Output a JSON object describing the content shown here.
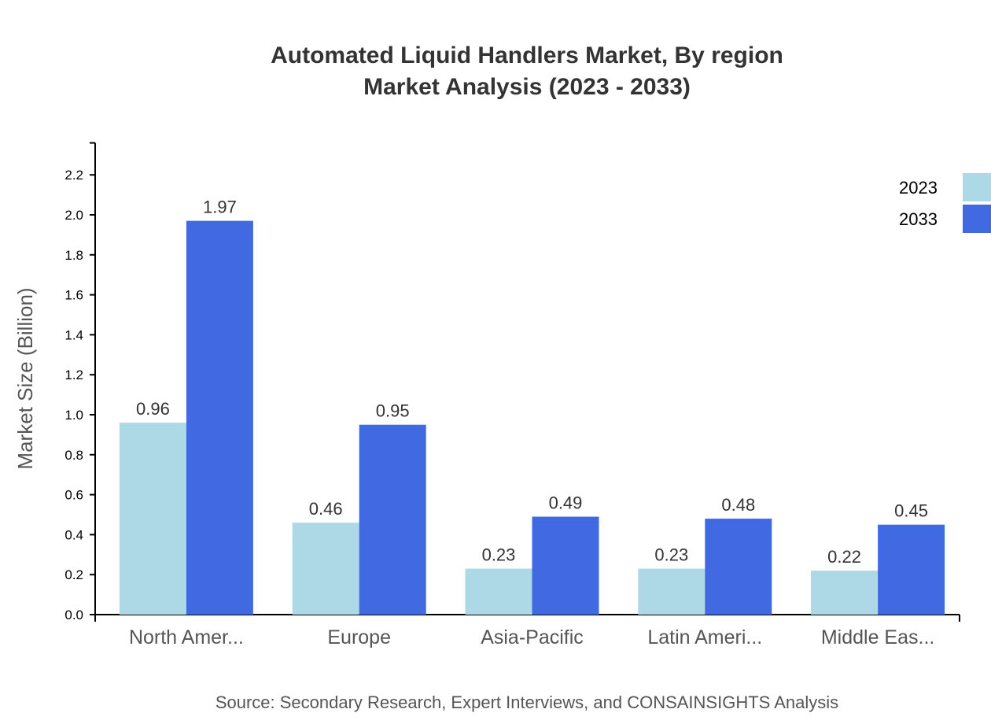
{
  "chart_data": {
    "type": "bar",
    "title": "Automated Liquid Handlers Market, By region",
    "subtitle": "Market Analysis (2023 - 2033)",
    "xlabel": "",
    "ylabel": "Market Size (Billion)",
    "categories": [
      "North Amer...",
      "Europe",
      "Asia-Pacific",
      "Latin Ameri...",
      "Middle Eas..."
    ],
    "series": [
      {
        "name": "2023",
        "color": "#ADD8E6",
        "values": [
          0.96,
          0.46,
          0.23,
          0.23,
          0.22
        ]
      },
      {
        "name": "2033",
        "color": "#4169E1",
        "values": [
          1.97,
          0.95,
          0.49,
          0.48,
          0.45
        ]
      }
    ],
    "ylim": [
      0,
      2.36
    ],
    "yticks": [
      "0.0",
      "0.2",
      "0.4",
      "0.6",
      "0.8",
      "1.0",
      "1.2",
      "1.4",
      "1.6",
      "1.8",
      "2.0",
      "2.2"
    ],
    "grid": false,
    "legend_position": "top-right",
    "source": "Source: Secondary Research, Expert Interviews, and CONSAINSIGHTS Analysis"
  }
}
